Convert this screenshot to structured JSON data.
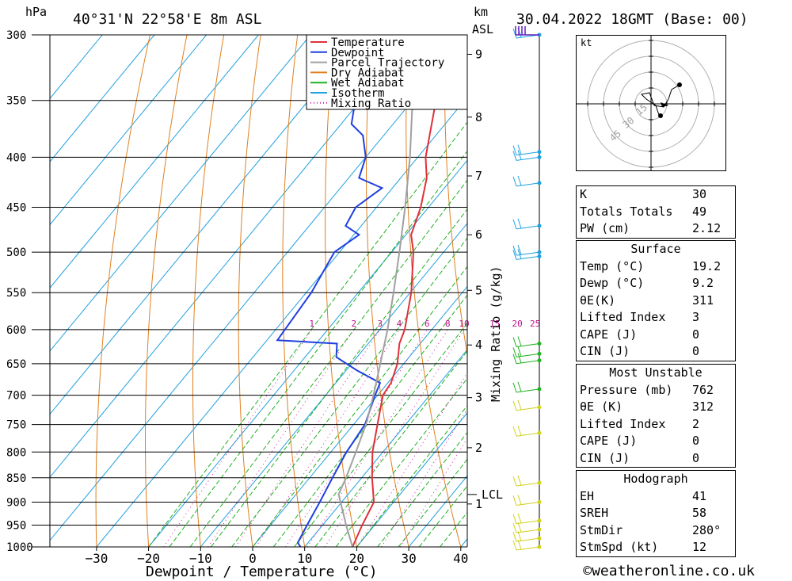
{
  "header": {
    "location": "40°31'N 22°58'E 8m ASL",
    "datetime": "30.04.2022 18GMT (Base: 00)",
    "pressure_unit": "hPa",
    "height_unit_1": "km",
    "height_unit_2": "ASL"
  },
  "legend": [
    {
      "label": "Temperature",
      "color": "#e0303a",
      "style": "solid"
    },
    {
      "label": "Dewpoint",
      "color": "#2040e0",
      "style": "solid"
    },
    {
      "label": "Parcel Trajectory",
      "color": "#a0a0a0",
      "style": "solid"
    },
    {
      "label": "Dry Adiabat",
      "color": "#e08020",
      "style": "solid"
    },
    {
      "label": "Wet Adiabat",
      "color": "#20b020",
      "style": "solid"
    },
    {
      "label": "Isotherm",
      "color": "#20a0e0",
      "style": "solid"
    },
    {
      "label": "Mixing Ratio",
      "color": "#d020a0",
      "style": "dotted"
    }
  ],
  "chart_data": {
    "type": "line",
    "xlabel": "Dewpoint / Temperature (°C)",
    "ylabel": "hPa",
    "x_ticks": [
      -30,
      -20,
      -10,
      0,
      10,
      20,
      30,
      40
    ],
    "pressure_levels": [
      300,
      350,
      400,
      450,
      500,
      550,
      600,
      650,
      700,
      750,
      800,
      850,
      900,
      950,
      1000
    ],
    "height_km_ticks": [
      {
        "label": "9",
        "p": 314
      },
      {
        "label": "8",
        "p": 364
      },
      {
        "label": "7",
        "p": 418
      },
      {
        "label": "6",
        "p": 480
      },
      {
        "label": "5",
        "p": 547
      },
      {
        "label": "4",
        "p": 622
      },
      {
        "label": "3",
        "p": 704
      },
      {
        "label": "2",
        "p": 792
      },
      {
        "label": "1",
        "p": 904
      }
    ],
    "lcl": {
      "label": "LCL",
      "p": 884
    },
    "mixing_ratio_label_title": "Mixing Ratio (g/kg)",
    "mixing_ratio_labels": [
      "1",
      "2",
      "3",
      "4",
      "6",
      "8",
      "10",
      "15",
      "20",
      "25"
    ],
    "series": [
      {
        "name": "Temperature",
        "points": [
          [
            1000,
            19.2
          ],
          [
            950,
            17.6
          ],
          [
            900,
            16.2
          ],
          [
            850,
            12.0
          ],
          [
            800,
            8.0
          ],
          [
            750,
            4.6
          ],
          [
            700,
            1.0
          ],
          [
            680,
            0.6
          ],
          [
            650,
            -1.2
          ],
          [
            620,
            -4.0
          ],
          [
            600,
            -5.2
          ],
          [
            550,
            -9.8
          ],
          [
            500,
            -15.8
          ],
          [
            480,
            -19.0
          ],
          [
            450,
            -21.5
          ],
          [
            420,
            -25.0
          ],
          [
            400,
            -28.5
          ],
          [
            350,
            -35.5
          ],
          [
            320,
            -42.5
          ],
          [
            300,
            -45.5
          ]
        ]
      },
      {
        "name": "Dewpoint",
        "points": [
          [
            1000,
            9.2
          ],
          [
            990,
            8.0
          ],
          [
            950,
            7.0
          ],
          [
            900,
            5.8
          ],
          [
            850,
            4.4
          ],
          [
            800,
            3.0
          ],
          [
            750,
            2.2
          ],
          [
            700,
            -0.5
          ],
          [
            680,
            -1.5
          ],
          [
            660,
            -8.0
          ],
          [
            640,
            -14.0
          ],
          [
            620,
            -16.0
          ],
          [
            615,
            -28.0
          ],
          [
            550,
            -29.0
          ],
          [
            500,
            -31.0
          ],
          [
            480,
            -29.0
          ],
          [
            470,
            -33.0
          ],
          [
            450,
            -34.0
          ],
          [
            430,
            -32.0
          ],
          [
            420,
            -38.0
          ],
          [
            400,
            -40.0
          ],
          [
            380,
            -44.0
          ],
          [
            370,
            -48.0
          ],
          [
            350,
            -51.0
          ],
          [
            320,
            -55.0
          ],
          [
            310,
            -57.0
          ],
          [
            305,
            -60.0
          ],
          [
            300,
            -60.0
          ]
        ]
      },
      {
        "name": "Parcel Trajectory",
        "points": [
          [
            1000,
            19.2
          ],
          [
            950,
            14.5
          ],
          [
            900,
            9.8
          ],
          [
            884,
            8.2
          ],
          [
            850,
            7.0
          ],
          [
            800,
            4.8
          ],
          [
            750,
            2.4
          ],
          [
            700,
            -0.8
          ],
          [
            650,
            -4.5
          ],
          [
            600,
            -8.5
          ],
          [
            550,
            -13.2
          ],
          [
            500,
            -18.5
          ],
          [
            450,
            -24.5
          ],
          [
            400,
            -31.5
          ],
          [
            350,
            -40.0
          ],
          [
            300,
            -50.0
          ]
        ]
      }
    ],
    "wind_barb_levels": [
      300,
      395,
      400,
      425,
      470,
      500,
      505,
      620,
      635,
      645,
      690,
      720,
      765,
      860,
      900,
      940,
      960,
      980,
      1000
    ]
  },
  "hodograph": {
    "unit": "kt",
    "ring_labels": [
      "15",
      "30",
      "45"
    ]
  },
  "indices": {
    "top": [
      {
        "label": "K",
        "value": "30"
      },
      {
        "label": "Totals Totals",
        "value": "49"
      },
      {
        "label": "PW (cm)",
        "value": "2.12"
      }
    ],
    "surface": {
      "title": "Surface",
      "rows": [
        {
          "label": "Temp (°C)",
          "value": "19.2"
        },
        {
          "label": "Dewp (°C)",
          "value": "9.2"
        },
        {
          "label": "θE(K)",
          "value": "311"
        },
        {
          "label": "Lifted Index",
          "value": "3"
        },
        {
          "label": "CAPE (J)",
          "value": "0"
        },
        {
          "label": "CIN (J)",
          "value": "0"
        }
      ]
    },
    "most_unstable": {
      "title": "Most Unstable",
      "rows": [
        {
          "label": "Pressure (mb)",
          "value": "762"
        },
        {
          "label": "θE (K)",
          "value": "312"
        },
        {
          "label": "Lifted Index",
          "value": "2"
        },
        {
          "label": "CAPE (J)",
          "value": "0"
        },
        {
          "label": "CIN (J)",
          "value": "0"
        }
      ]
    },
    "hodograph": {
      "title": "Hodograph",
      "rows": [
        {
          "label": "EH",
          "value": "41"
        },
        {
          "label": "SREH",
          "value": "58"
        },
        {
          "label": "StmDir",
          "value": "280°"
        },
        {
          "label": "StmSpd (kt)",
          "value": "12"
        }
      ]
    }
  },
  "footer": "©weatheronline.co.uk"
}
